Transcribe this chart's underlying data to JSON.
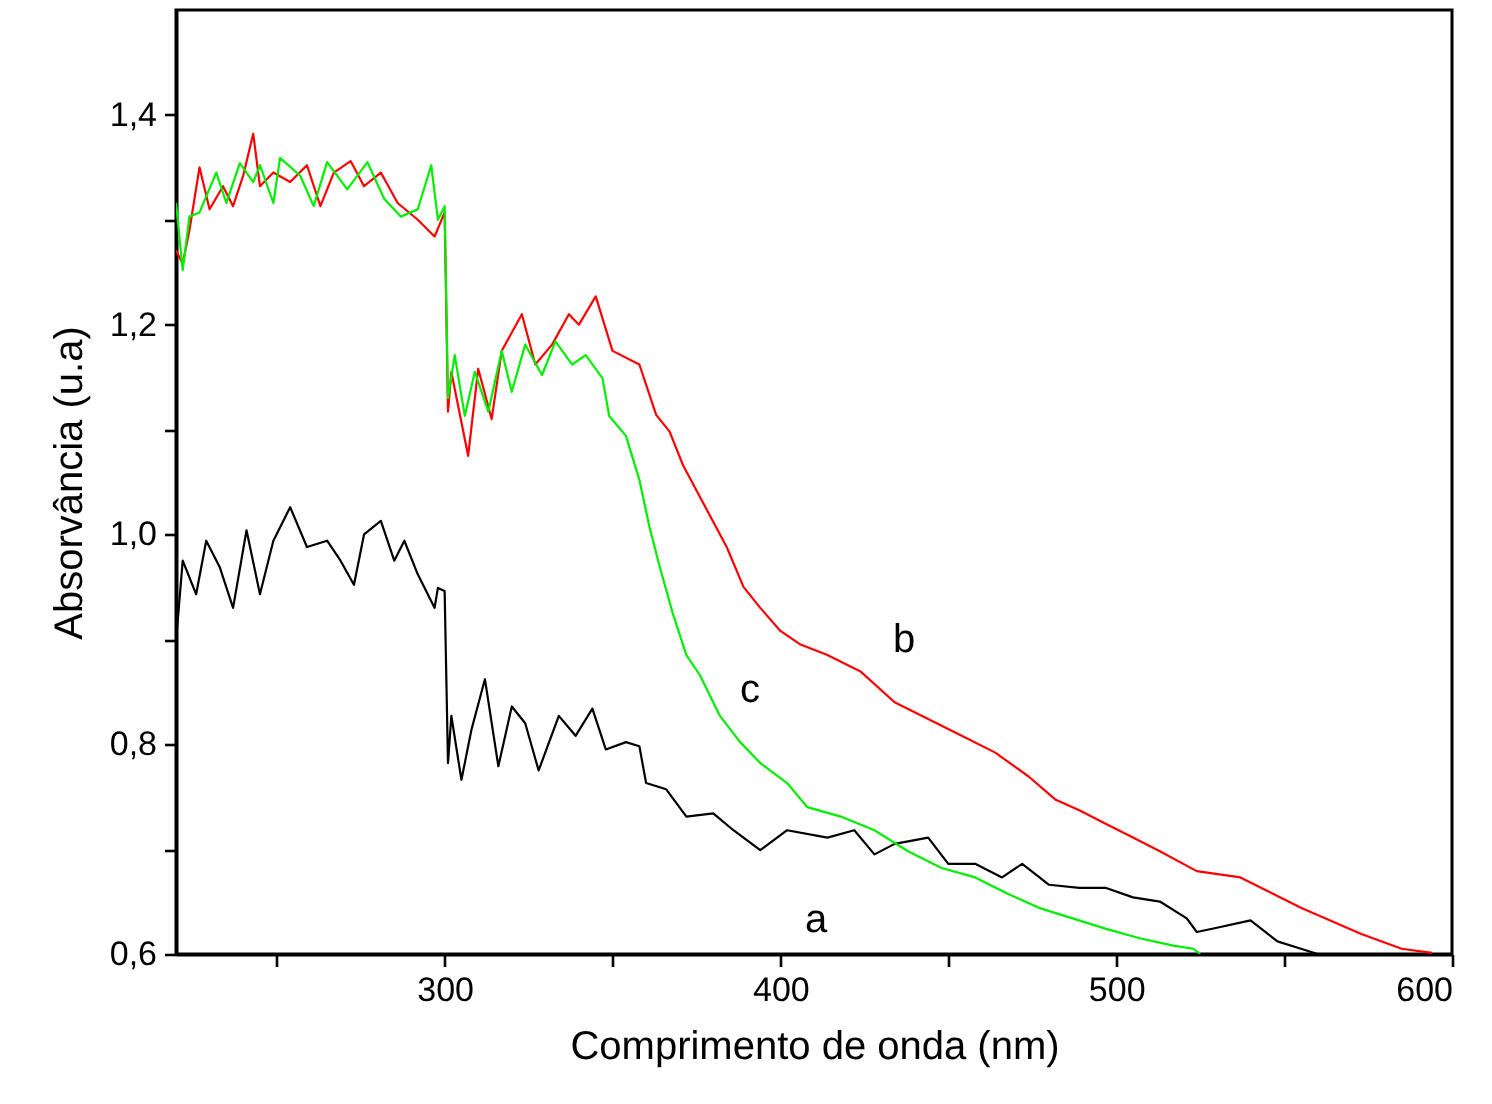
{
  "chart_data": {
    "type": "line",
    "xlabel": "Comprimento de onda (nm)",
    "ylabel": "Absorvância (u.a)",
    "xlim": [
      220,
      600
    ],
    "ylim": [
      0.6,
      1.5
    ],
    "xticks": [
      {
        "value": 250,
        "label": null
      },
      300,
      {
        "value": 350,
        "label": null
      },
      400,
      {
        "value": 450,
        "label": null
      },
      500,
      {
        "value": 550,
        "label": null
      },
      600
    ],
    "yticks": [
      {
        "value": 0.6,
        "label": "0,6"
      },
      {
        "value": 0.7,
        "label": null
      },
      {
        "value": 0.8,
        "label": "0,8"
      },
      {
        "value": 0.9,
        "label": null
      },
      {
        "value": 1.0,
        "label": "1,0"
      },
      {
        "value": 1.1,
        "label": null
      },
      {
        "value": 1.2,
        "label": "1,2"
      },
      {
        "value": 1.3,
        "label": null
      },
      {
        "value": 1.4,
        "label": "1,4"
      }
    ],
    "grid": false,
    "marker": "none",
    "line_style": "solid",
    "series": [
      {
        "color": "#000000",
        "x": [
          220,
          222,
          226,
          229,
          233,
          237,
          241,
          245,
          249,
          254,
          259,
          265,
          269,
          273,
          276,
          281,
          285,
          288,
          292,
          297,
          298,
          300,
          301,
          302,
          305,
          308,
          312,
          316,
          320,
          324,
          328,
          334,
          339,
          344,
          348,
          354,
          358,
          360,
          366,
          372,
          380,
          386,
          394,
          402,
          414,
          422,
          428,
          434,
          444,
          450,
          458,
          466,
          472,
          480,
          489,
          497,
          505,
          513,
          521,
          524,
          530,
          540,
          548,
          555,
          560
        ],
        "values": [
          0.898,
          0.975,
          0.943,
          0.994,
          0.969,
          0.93,
          1.004,
          0.943,
          0.994,
          1.026,
          0.988,
          0.994,
          0.975,
          0.952,
          1.0,
          1.013,
          0.975,
          0.994,
          0.962,
          0.93,
          0.949,
          0.946,
          0.782,
          0.827,
          0.766,
          0.814,
          0.862,
          0.779,
          0.836,
          0.82,
          0.775,
          0.827,
          0.808,
          0.834,
          0.795,
          0.802,
          0.798,
          0.763,
          0.757,
          0.731,
          0.734,
          0.718,
          0.699,
          0.718,
          0.711,
          0.718,
          0.695,
          0.705,
          0.711,
          0.686,
          0.686,
          0.673,
          0.686,
          0.666,
          0.663,
          0.663,
          0.654,
          0.65,
          0.634,
          0.621,
          0.625,
          0.632,
          0.612,
          0.605,
          0.6
        ]
      },
      {
        "color": "#ff0000",
        "x": [
          220,
          222,
          224,
          227,
          230,
          234,
          237,
          240,
          243,
          245,
          249,
          254,
          259,
          263,
          267,
          272,
          276,
          281,
          286,
          292,
          297,
          300,
          301,
          302,
          304,
          307,
          310,
          314,
          317,
          323,
          327,
          332,
          337,
          340,
          345,
          350,
          358,
          363,
          367,
          371,
          378,
          384,
          389,
          394,
          400,
          406,
          414,
          424,
          434,
          444,
          454,
          464,
          474,
          482,
          489,
          497,
          505,
          513,
          524,
          537,
          555,
          573,
          585,
          594
        ],
        "values": [
          1.271,
          1.258,
          1.29,
          1.35,
          1.31,
          1.332,
          1.313,
          1.342,
          1.382,
          1.332,
          1.345,
          1.336,
          1.352,
          1.313,
          1.345,
          1.356,
          1.332,
          1.345,
          1.316,
          1.3,
          1.284,
          1.307,
          1.117,
          1.155,
          1.123,
          1.075,
          1.158,
          1.11,
          1.175,
          1.21,
          1.162,
          1.181,
          1.21,
          1.2,
          1.227,
          1.175,
          1.162,
          1.114,
          1.098,
          1.066,
          1.024,
          0.988,
          0.95,
          0.93,
          0.908,
          0.895,
          0.885,
          0.869,
          0.84,
          0.824,
          0.808,
          0.792,
          0.769,
          0.747,
          0.737,
          0.724,
          0.711,
          0.698,
          0.679,
          0.673,
          0.644,
          0.619,
          0.605,
          0.601
        ]
      },
      {
        "color": "#00ee00",
        "x": [
          220,
          222,
          224,
          227,
          232,
          235,
          239,
          243,
          245,
          249,
          251,
          257,
          261,
          265,
          271,
          277,
          282,
          287,
          292,
          296,
          298,
          300,
          301,
          303,
          306,
          309,
          313,
          317,
          320,
          324,
          329,
          333,
          338,
          342,
          347,
          349,
          354,
          358,
          361,
          364,
          368,
          372,
          376,
          382,
          388,
          394,
          402,
          408,
          418,
          428,
          438,
          448,
          458,
          468,
          477,
          487,
          497,
          507,
          517,
          523,
          525
        ],
        "values": [
          1.316,
          1.252,
          1.303,
          1.307,
          1.345,
          1.316,
          1.354,
          1.336,
          1.352,
          1.316,
          1.359,
          1.342,
          1.313,
          1.355,
          1.329,
          1.355,
          1.32,
          1.303,
          1.31,
          1.352,
          1.3,
          1.313,
          1.13,
          1.171,
          1.113,
          1.155,
          1.117,
          1.175,
          1.136,
          1.181,
          1.152,
          1.184,
          1.162,
          1.171,
          1.149,
          1.113,
          1.094,
          1.052,
          1.007,
          0.97,
          0.924,
          0.885,
          0.866,
          0.827,
          0.802,
          0.782,
          0.763,
          0.74,
          0.731,
          0.718,
          0.698,
          0.682,
          0.673,
          0.657,
          0.644,
          0.634,
          0.624,
          0.615,
          0.608,
          0.605,
          0.6
        ]
      }
    ],
    "annotations": [
      "a",
      "b",
      "c"
    ]
  }
}
